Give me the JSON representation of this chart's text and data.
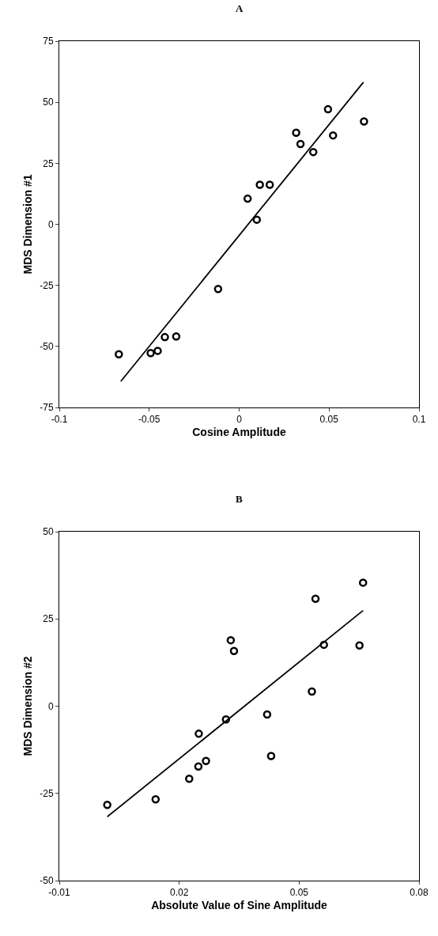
{
  "chart_data": [
    {
      "type": "scatter",
      "title": "A",
      "xlabel": "Cosine Amplitude",
      "ylabel": "MDS Dimension #1",
      "xlim": [
        -0.1,
        0.1
      ],
      "xticks": [
        -0.1,
        -0.05,
        0,
        0.05,
        0.1
      ],
      "ylim": [
        -75,
        75
      ],
      "yticks": [
        -75,
        -50,
        -25,
        0,
        25,
        50,
        75
      ],
      "series": [
        {
          "marker": "circle",
          "color": "#000000",
          "x": [
            -0.0669,
            -0.0492,
            -0.0453,
            -0.0413,
            -0.035,
            -0.0117,
            0.0047,
            0.0098,
            0.0115,
            0.017,
            0.0317,
            0.0341,
            0.0412,
            0.0494,
            0.0522,
            0.0694
          ],
          "values": [
            -53.2,
            -52.7,
            -51.8,
            -46.2,
            -45.9,
            -26.5,
            10.5,
            1.9,
            16.2,
            16.2,
            37.5,
            32.9,
            29.6,
            47.1,
            36.4,
            42.1
          ]
        },
        {
          "type": "line",
          "marker": "none",
          "color": "#000000",
          "line_style": "solid",
          "x": [
            -0.0658,
            0.0691
          ],
          "values": [
            -64.3,
            58.2
          ]
        }
      ]
    },
    {
      "type": "scatter",
      "title": "B",
      "xlabel": "Absolute Value of Sine Amplitude",
      "ylabel": "MDS Dimension #2",
      "xlim": [
        -0.01,
        0.08
      ],
      "xticks": [
        -0.01,
        0.02,
        0.05,
        0.08
      ],
      "ylim": [
        -50,
        50
      ],
      "yticks": [
        -50,
        -25,
        0,
        25,
        50
      ],
      "series": [
        {
          "marker": "circle",
          "color": "#000000",
          "x": [
            0.002,
            0.0141,
            0.0225,
            0.0248,
            0.0267,
            0.0249,
            0.0317,
            0.0329,
            0.0337,
            0.042,
            0.043,
            0.0532,
            0.0541,
            0.0562,
            0.0651,
            0.066
          ],
          "values": [
            -28.3,
            -26.7,
            -20.8,
            -17.3,
            -15.7,
            -7.9,
            -3.8,
            18.9,
            15.8,
            -2.4,
            -14.3,
            4.2,
            30.8,
            17.6,
            17.4,
            35.4
          ]
        },
        {
          "type": "line",
          "marker": "none",
          "color": "#000000",
          "line_style": "solid",
          "x": [
            0.002,
            0.066
          ],
          "values": [
            -31.7,
            27.4
          ]
        }
      ]
    }
  ]
}
